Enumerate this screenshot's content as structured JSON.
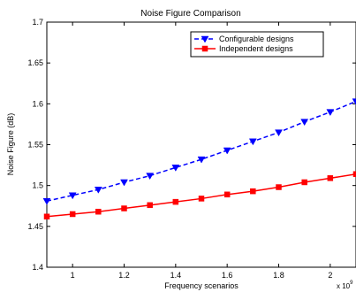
{
  "chart_data": {
    "type": "line",
    "title": "Noise Figure Comparison",
    "xlabel": "Frequency scenarios",
    "ylabel": "Noise Figure (dB)",
    "x_scale_label": "x 10",
    "x_scale_exponent": "9",
    "xlim": [
      0.9,
      2.1
    ],
    "ylim": [
      1.4,
      1.7
    ],
    "x_ticks": [
      1,
      1.2,
      1.4,
      1.6,
      1.8,
      2
    ],
    "x_tick_labels": [
      "1",
      "1.2",
      "1.4",
      "1.6",
      "1.8",
      "2"
    ],
    "y_ticks": [
      1.4,
      1.45,
      1.5,
      1.55,
      1.6,
      1.65,
      1.7
    ],
    "y_tick_labels": [
      "1.4",
      "1.45",
      "1.5",
      "1.55",
      "1.6",
      "1.65",
      "1.7"
    ],
    "grid": false,
    "legend_position": "top-right",
    "x": [
      0.9,
      1.0,
      1.1,
      1.2,
      1.3,
      1.4,
      1.5,
      1.6,
      1.7,
      1.8,
      1.9,
      2.0,
      2.1
    ],
    "series": [
      {
        "name": "Configurable designs",
        "color": "#0000ff",
        "line_style": "dashed",
        "marker": "triangle-down",
        "values": [
          1.481,
          1.488,
          1.495,
          1.504,
          1.512,
          1.522,
          1.532,
          1.543,
          1.554,
          1.565,
          1.578,
          1.59,
          1.603
        ]
      },
      {
        "name": "Independent designs",
        "color": "#ff0000",
        "line_style": "solid",
        "marker": "square",
        "values": [
          1.462,
          1.465,
          1.468,
          1.472,
          1.476,
          1.48,
          1.484,
          1.489,
          1.493,
          1.498,
          1.504,
          1.509,
          1.514
        ]
      }
    ]
  }
}
